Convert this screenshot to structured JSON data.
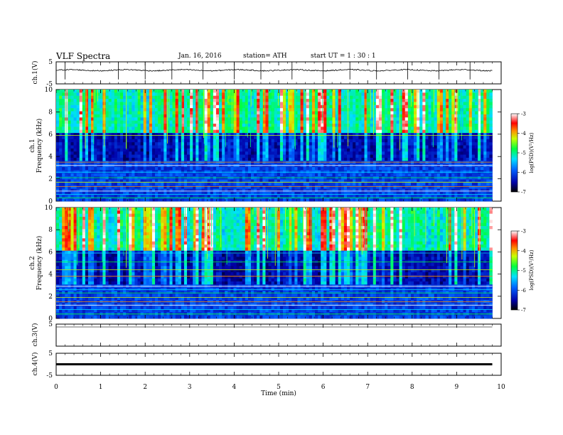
{
  "header": {
    "title": "VLF  Spectra",
    "date": "Jan. 16, 2016",
    "station": "station= ATH",
    "start": "start  UT =    1  : 30 : 1"
  },
  "chart_data": [
    {
      "type": "line",
      "name": "ch1-waveform",
      "ylabel": "ch.1(V)",
      "ylim": [
        -5,
        5
      ],
      "yticks": [
        "5",
        "-5"
      ],
      "approx_level_v": 1.2,
      "spike_times_min": [
        0.2,
        1.4,
        2.0,
        2.6,
        3.3,
        4.0,
        4.6,
        5.3,
        6.0,
        6.6,
        7.2,
        7.9,
        8.6,
        9.3
      ]
    },
    {
      "type": "heatmap",
      "name": "ch1-spectrogram",
      "ylabel": "ch.1\nFrequency (kHz)",
      "yticks": [
        "10",
        "8",
        "6",
        "4",
        "2",
        "0"
      ],
      "ylim": [
        0,
        10
      ],
      "colorbar": {
        "label": "log(PSD)(V²/Hz)",
        "ticks": [
          "-3",
          "-4",
          "-5",
          "-6",
          "-7"
        ],
        "range": [
          -7,
          -3
        ]
      },
      "horizontal_lines_khz": [
        0.3,
        0.6,
        0.9,
        1.3,
        1.7,
        2.1,
        2.6,
        3.2,
        3.5,
        5.9
      ]
    },
    {
      "type": "heatmap",
      "name": "ch2-spectrogram",
      "ylabel": "ch.2\nFrequency (kHz)",
      "yticks": [
        "10",
        "8",
        "6",
        "4",
        "2",
        "0"
      ],
      "ylim": [
        0,
        10
      ],
      "colorbar": {
        "label": "log(PSD)(V²/Hz)",
        "ticks": [
          "-3",
          "-4",
          "-5",
          "-6",
          "-7"
        ],
        "range": [
          -7,
          -3
        ]
      },
      "horizontal_lines_khz": [
        0.4,
        0.8,
        1.2,
        1.5,
        1.9,
        2.3,
        2.6,
        2.9,
        3.8,
        4.4,
        5.1,
        5.9
      ]
    },
    {
      "type": "line",
      "name": "ch3-waveform",
      "ylabel": "ch.3(V)",
      "ylim": [
        -5,
        5
      ],
      "yticks": [
        "5"
      ],
      "approx_level_v": 5
    },
    {
      "type": "line",
      "name": "ch4-waveform",
      "ylabel": "ch.4(V)",
      "ylim": [
        -5,
        5
      ],
      "yticks": [
        "5",
        "-5"
      ],
      "approx_level_v": 0
    }
  ],
  "xaxis": {
    "label": "Time  (min)",
    "ticks": [
      "0",
      "1",
      "2",
      "3",
      "4",
      "5",
      "6",
      "7",
      "8",
      "9",
      "10"
    ],
    "xlim": [
      0,
      10
    ],
    "data_end_min": 9.8
  }
}
